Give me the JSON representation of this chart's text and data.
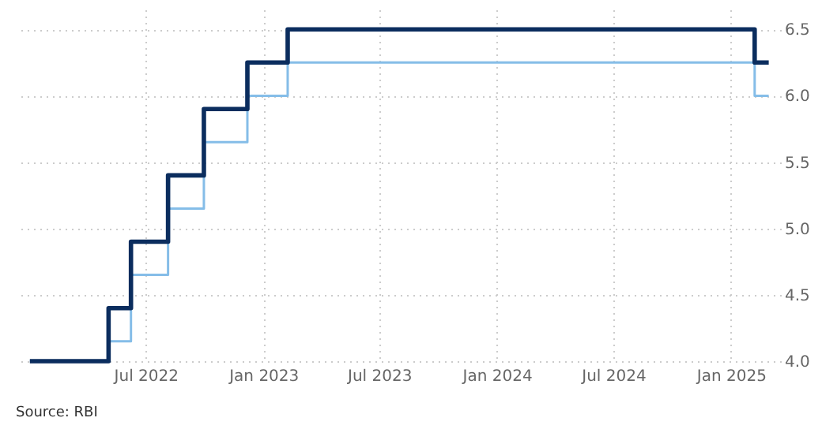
{
  "chart_data": {
    "type": "step",
    "series": [
      {
        "color": "#85bde8",
        "x": [
          "2022-01-01",
          "2022-05-04",
          "2022-06-08",
          "2022-08-05",
          "2022-09-30",
          "2022-12-07",
          "2023-02-08",
          "2025-02-07",
          "2025-03-01"
        ],
        "values": [
          4.0,
          4.15,
          4.65,
          5.15,
          5.65,
          6.0,
          6.25,
          6.0,
          6.0
        ]
      },
      {
        "color": "#0b2d5e",
        "x": [
          "2022-01-01",
          "2022-05-04",
          "2022-06-08",
          "2022-08-05",
          "2022-09-30",
          "2022-12-07",
          "2023-02-08",
          "2025-02-07",
          "2025-03-01"
        ],
        "values": [
          4.0,
          4.4,
          4.9,
          5.4,
          5.9,
          6.25,
          6.5,
          6.25,
          6.25
        ]
      }
    ],
    "xlim": [
      "2021-12-10",
      "2025-03-20"
    ],
    "xticks": [
      {
        "value": "2022-07-01",
        "label": "Jul 2022"
      },
      {
        "value": "2023-01-01",
        "label": "Jan 2023"
      },
      {
        "value": "2023-07-01",
        "label": "Jul 2023"
      },
      {
        "value": "2024-01-01",
        "label": "Jan 2024"
      },
      {
        "value": "2024-07-01",
        "label": "Jul 2024"
      },
      {
        "value": "2025-01-01",
        "label": "Jan 2025"
      }
    ],
    "ylim": [
      4.0,
      6.65
    ],
    "yticks": [
      {
        "value": 4,
        "label": "4.0"
      },
      {
        "value": 4.5,
        "label": "4.5"
      },
      {
        "value": 5,
        "label": "5.0"
      },
      {
        "value": 5.5,
        "label": "5.5"
      },
      {
        "value": 6,
        "label": "6.0"
      },
      {
        "value": 6.5,
        "label": "6.5"
      }
    ],
    "grid": true,
    "line_style": "solid",
    "marker": "none",
    "annotations": [
      "Source: RBI"
    ]
  }
}
